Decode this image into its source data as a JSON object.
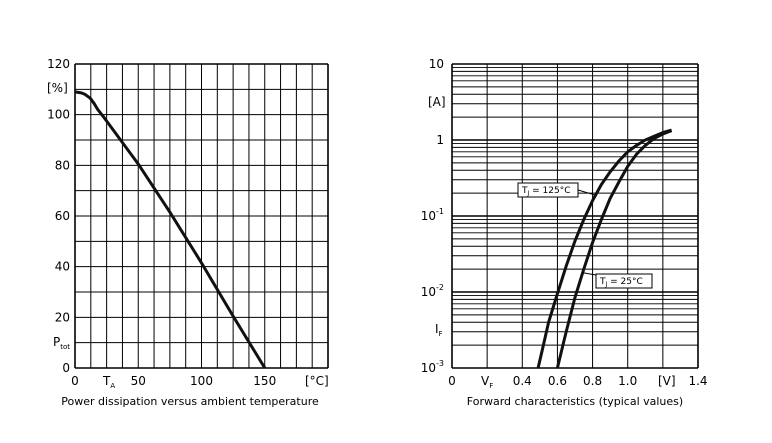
{
  "chart_data": [
    {
      "type": "line",
      "title": "Power dissipation versus ambient temperature",
      "xlabel": "[°C]",
      "ylabel": "P_tot [%]",
      "ylabel_main": "P",
      "ylabel_sub": "tot",
      "ylabel_unit": "[%]",
      "xlabel_unit": "[°C]",
      "x_marker_main": "T",
      "x_marker_sub": "A",
      "xlim": [
        0,
        200
      ],
      "ylim": [
        0,
        120
      ],
      "x_ticks": [
        "0",
        "50",
        "100",
        "150"
      ],
      "x_tick_values": [
        0,
        50,
        100,
        150
      ],
      "y_ticks": [
        "0",
        "20",
        "40",
        "60",
        "80",
        "100",
        "120"
      ],
      "y_tick_values": [
        0,
        20,
        40,
        60,
        80,
        100,
        120
      ],
      "grid": true,
      "series": [
        {
          "x": [
            0,
            5,
            8,
            12,
            15,
            18,
            22,
            25,
            50,
            75,
            100,
            125,
            150
          ],
          "values": [
            109,
            108.6,
            108,
            106.5,
            104.5,
            102,
            99.5,
            97.5,
            80.5,
            61.5,
            41.5,
            20.5,
            0
          ]
        }
      ]
    },
    {
      "type": "line",
      "title": "Forward characteristics (typical values)",
      "xlabel": "[V]",
      "ylabel": "I_F [A]",
      "ylabel_main": "I",
      "ylabel_sub": "F",
      "ylabel_unit": "[A]",
      "xlabel_unit": "[V]",
      "x_marker_main": "V",
      "x_marker_sub": "F",
      "xlim": [
        0,
        1.4
      ],
      "ylim": [
        0.001,
        10
      ],
      "yscale": "log",
      "x_ticks": [
        "0",
        "0.4",
        "0.6",
        "0.8",
        "1.0",
        "1.4"
      ],
      "x_tick_values": [
        0,
        0.4,
        0.6,
        0.8,
        1.0,
        1.4
      ],
      "y_tick_labels": [
        {
          "value": 10,
          "base": "10",
          "exp": ""
        },
        {
          "value": 1,
          "base": "1",
          "exp": ""
        },
        {
          "value": 0.1,
          "base": "10",
          "exp": "-1"
        },
        {
          "value": 0.01,
          "base": "10",
          "exp": "-2"
        },
        {
          "value": 0.001,
          "base": "10",
          "exp": "-3"
        }
      ],
      "grid": true,
      "annotations": [
        {
          "main": "T",
          "sub": "J",
          "rest": " = 125°C",
          "series_index": 0
        },
        {
          "main": "T",
          "sub": "J",
          "rest": " = 25°C",
          "series_index": 1
        }
      ],
      "series": [
        {
          "x": [
            0.49,
            0.52,
            0.55,
            0.6,
            0.65,
            0.7,
            0.75,
            0.8,
            0.85,
            0.9,
            0.95,
            1.0,
            1.05,
            1.1,
            1.15,
            1.2,
            1.25
          ],
          "values": [
            0.001,
            0.002,
            0.004,
            0.0095,
            0.022,
            0.047,
            0.09,
            0.16,
            0.26,
            0.38,
            0.53,
            0.7,
            0.85,
            1.0,
            1.12,
            1.25,
            1.35
          ]
        },
        {
          "x": [
            0.6,
            0.65,
            0.7,
            0.75,
            0.8,
            0.85,
            0.9,
            0.95,
            1.0,
            1.05,
            1.1,
            1.15,
            1.2,
            1.25
          ],
          "values": [
            0.001,
            0.003,
            0.0085,
            0.02,
            0.045,
            0.09,
            0.17,
            0.28,
            0.45,
            0.65,
            0.85,
            1.05,
            1.2,
            1.33
          ]
        }
      ]
    }
  ]
}
